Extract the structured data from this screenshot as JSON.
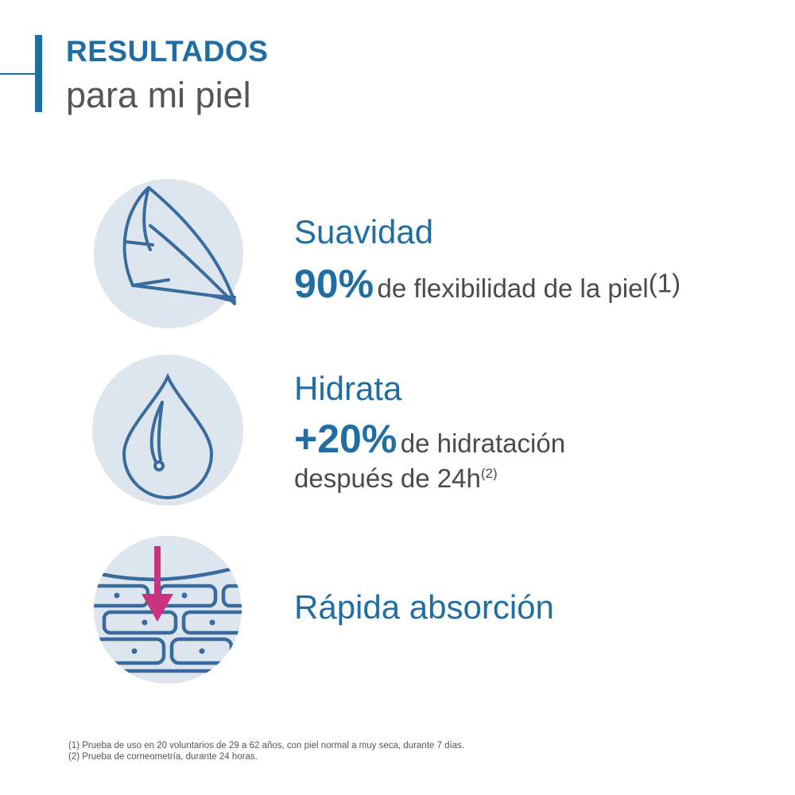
{
  "header": {
    "title": "RESULTADOS",
    "subtitle": "para mi piel"
  },
  "colors": {
    "accent": "#1f6ea3",
    "circle": "#dde5ee",
    "icon_stroke": "#3a6b9e",
    "arrow": "#c9337f",
    "text": "#4a4a4a"
  },
  "benefits": [
    {
      "icon": "feather-icon",
      "heading": "Suavidad",
      "value": "90%",
      "text": "de flexibilidad de la piel",
      "note": "(1)"
    },
    {
      "icon": "water-drop-icon",
      "heading": "Hidrata",
      "value": "+20%",
      "text": "de hidratación",
      "text2": "después de 24h",
      "note": "(2)"
    },
    {
      "icon": "skin-absorption-icon",
      "heading": "Rápida absorción"
    }
  ],
  "footnotes": [
    "(1) Prueba de uso en 20 voluntarios de 29 a 62 años, con piel normal a muy seca, durante 7 días.",
    "(2) Prueba de corneometría, durante 24 horas."
  ]
}
